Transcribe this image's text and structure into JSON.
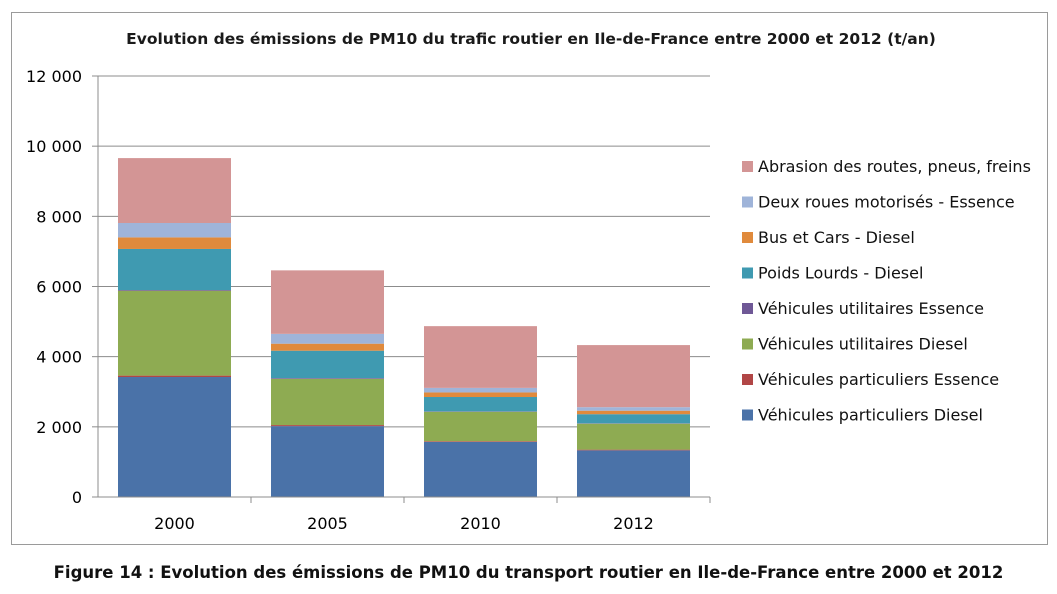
{
  "chart_data": {
    "type": "bar",
    "stacked": true,
    "title": "Evolution des émissions de PM10 du trafic routier en Ile-de-France entre 2000 et 2012 (t/an)",
    "xlabel": "",
    "ylabel": "",
    "ylim": [
      0,
      12000
    ],
    "yticks": [
      0,
      2000,
      4000,
      6000,
      8000,
      10000,
      12000
    ],
    "ytick_labels": [
      "0",
      "2 000",
      "4 000",
      "6 000",
      "8 000",
      "10 000",
      "12 000"
    ],
    "grid": true,
    "legend_position": "right",
    "categories": [
      "2000",
      "2005",
      "2010",
      "2012"
    ],
    "series": [
      {
        "name": "Véhicules particuliers Diesel",
        "color": "#4a72a8",
        "values": [
          3420,
          2020,
          1570,
          1330
        ]
      },
      {
        "name": "Véhicules particuliers Essence",
        "color": "#b14646",
        "values": [
          40,
          30,
          20,
          20
        ]
      },
      {
        "name": "Véhicules utilitaires Diesel",
        "color": "#8eab52",
        "values": [
          2420,
          1320,
          840,
          740
        ]
      },
      {
        "name": "Véhicules utilitaires Essence",
        "color": "#6f5896",
        "values": [
          20,
          20,
          10,
          10
        ]
      },
      {
        "name": "Poids Lourds - Diesel",
        "color": "#3f9ab1",
        "values": [
          1170,
          780,
          410,
          260
        ]
      },
      {
        "name": "Bus et Cars - Diesel",
        "color": "#e08a3c",
        "values": [
          330,
          200,
          130,
          100
        ]
      },
      {
        "name": "Deux roues motorisés - Essence",
        "color": "#9fb4d9",
        "values": [
          410,
          280,
          130,
          100
        ]
      },
      {
        "name": "Abrasion des routes, pneus, freins",
        "color": "#d39595",
        "values": [
          1850,
          1810,
          1760,
          1770
        ]
      }
    ]
  },
  "caption": "Figure 14 : Evolution des émissions de PM10 du transport routier en Ile-de-France entre 2000 et 2012"
}
